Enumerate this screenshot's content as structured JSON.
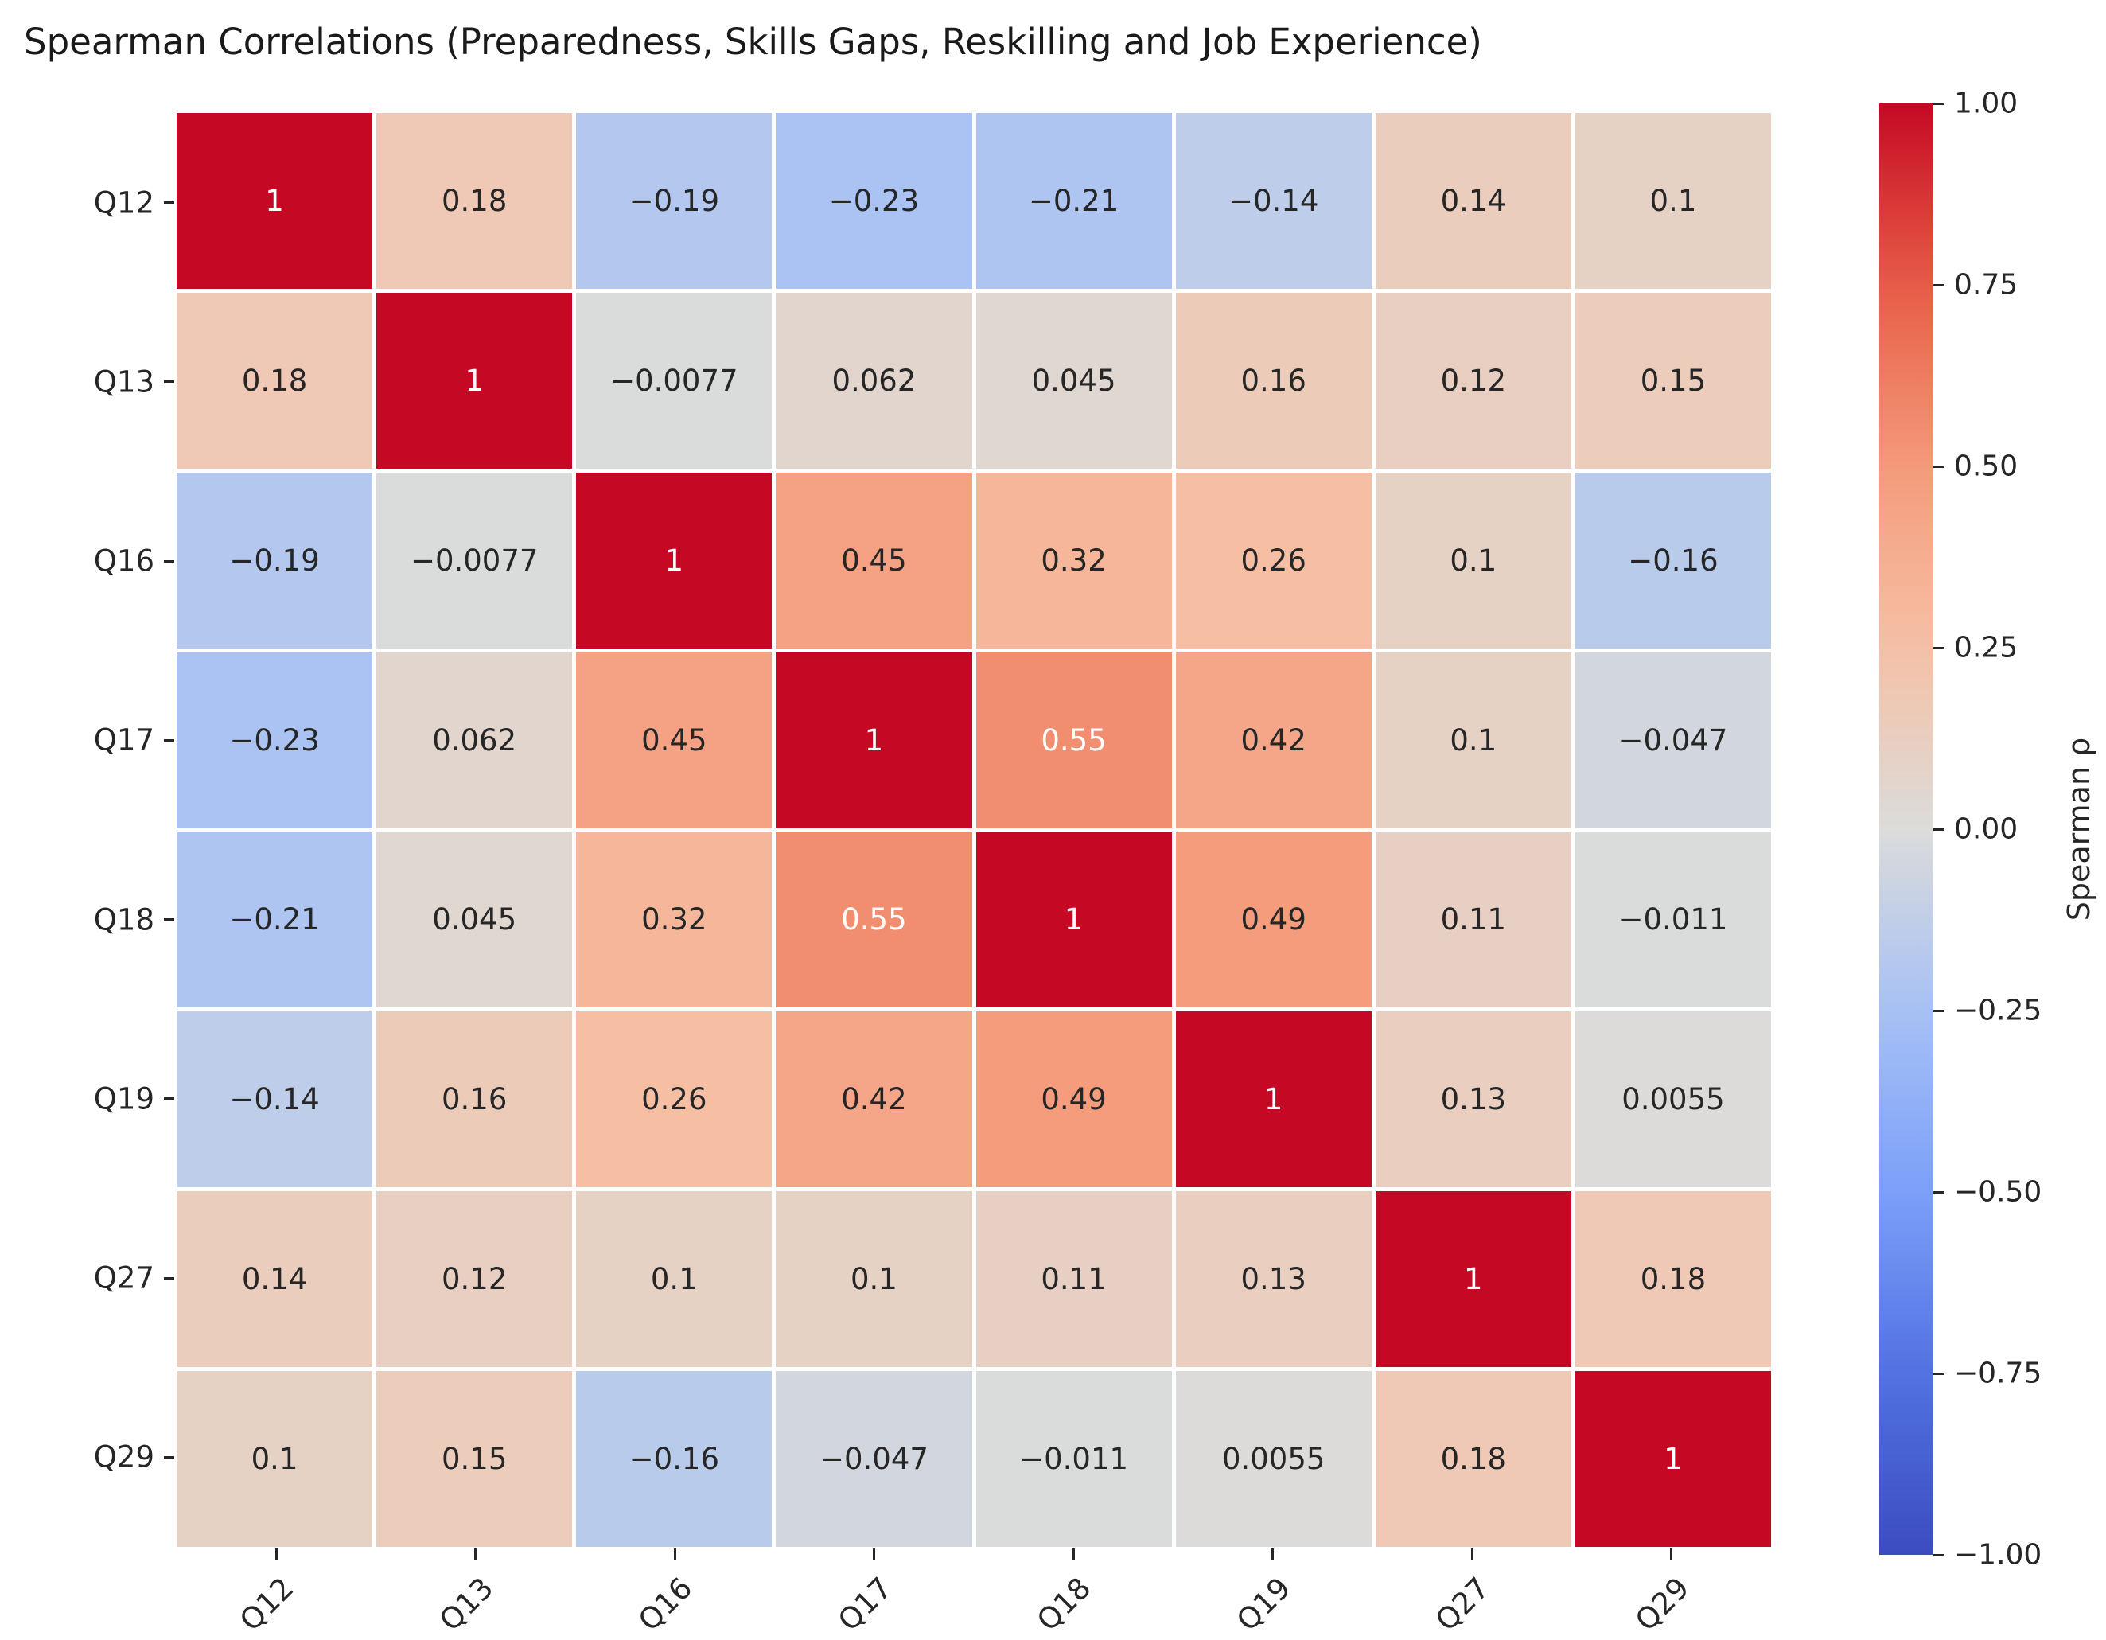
{
  "title": "Spearman Correlations (Preparedness, Skills Gaps, Reskilling and Job Experience)",
  "chart_data": {
    "type": "heatmap",
    "categories": [
      "Q12",
      "Q13",
      "Q16",
      "Q17",
      "Q18",
      "Q19",
      "Q27",
      "Q29"
    ],
    "matrix": [
      [
        1,
        0.18,
        -0.19,
        -0.23,
        -0.21,
        -0.14,
        0.14,
        0.1
      ],
      [
        0.18,
        1,
        -0.0077,
        0.062,
        0.045,
        0.16,
        0.12,
        0.15
      ],
      [
        -0.19,
        -0.0077,
        1,
        0.45,
        0.32,
        0.26,
        0.1,
        -0.16
      ],
      [
        -0.23,
        0.062,
        0.45,
        1,
        0.55,
        0.42,
        0.1,
        -0.047
      ],
      [
        -0.21,
        0.045,
        0.32,
        0.55,
        1,
        0.49,
        0.11,
        -0.011
      ],
      [
        -0.14,
        0.16,
        0.26,
        0.42,
        0.49,
        1,
        0.13,
        0.0055
      ],
      [
        0.14,
        0.12,
        0.1,
        0.1,
        0.11,
        0.13,
        1,
        0.18
      ],
      [
        0.1,
        0.15,
        -0.16,
        -0.047,
        -0.011,
        0.0055,
        0.18,
        1
      ]
    ],
    "cell_labels": [
      [
        "1",
        "0.18",
        "−0.19",
        "−0.23",
        "−0.21",
        "−0.14",
        "0.14",
        "0.1"
      ],
      [
        "0.18",
        "1",
        "−0.0077",
        "0.062",
        "0.045",
        "0.16",
        "0.12",
        "0.15"
      ],
      [
        "−0.19",
        "−0.0077",
        "1",
        "0.45",
        "0.32",
        "0.26",
        "0.1",
        "−0.16"
      ],
      [
        "−0.23",
        "0.062",
        "0.45",
        "1",
        "0.55",
        "0.42",
        "0.1",
        "−0.047"
      ],
      [
        "−0.21",
        "0.045",
        "0.32",
        "0.55",
        "1",
        "0.49",
        "0.11",
        "−0.011"
      ],
      [
        "−0.14",
        "0.16",
        "0.26",
        "0.42",
        "0.49",
        "1",
        "0.13",
        "0.0055"
      ],
      [
        "0.14",
        "0.12",
        "0.1",
        "0.1",
        "0.11",
        "0.13",
        "1",
        "0.18"
      ],
      [
        "0.1",
        "0.15",
        "−0.16",
        "−0.047",
        "−0.011",
        "0.0055",
        "0.18",
        "1"
      ]
    ],
    "vmin": -1,
    "vmax": 1,
    "colormap": "coolwarm",
    "grid": "white cell dividers",
    "legend_position": "right colorbar",
    "colorbar": {
      "label": "Spearman ρ",
      "ticks": [
        "1.00",
        "0.75",
        "0.50",
        "0.25",
        "0.00",
        "−0.25",
        "−0.50",
        "−0.75",
        "−1.00"
      ]
    },
    "annotation_colors": {
      "light": "#ffffff",
      "dark": "#262626"
    }
  }
}
